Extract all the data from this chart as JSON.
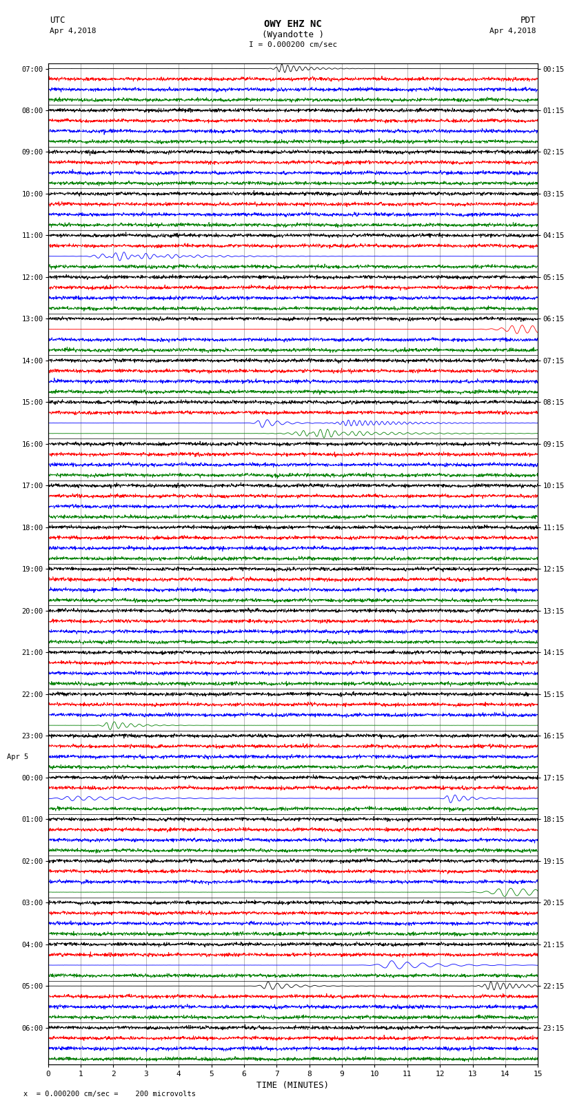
{
  "title_line1": "OWY EHZ NC",
  "title_line2": "(Wyandotte )",
  "scale_text": "I = 0.000200 cm/sec",
  "utc_label": "UTC",
  "utc_date": "Apr 4,2018",
  "pdt_label": "PDT",
  "pdt_date": "Apr 4,2018",
  "footer_text": "x  = 0.000200 cm/sec =    200 microvolts",
  "xlabel": "TIME (MINUTES)",
  "xmin": 0,
  "xmax": 15,
  "xticks": [
    0,
    1,
    2,
    3,
    4,
    5,
    6,
    7,
    8,
    9,
    10,
    11,
    12,
    13,
    14,
    15
  ],
  "left_times_utc": [
    "07:00",
    "",
    "",
    "",
    "08:00",
    "",
    "",
    "",
    "09:00",
    "",
    "",
    "",
    "10:00",
    "",
    "",
    "",
    "11:00",
    "",
    "",
    "",
    "12:00",
    "",
    "",
    "",
    "13:00",
    "",
    "",
    "",
    "14:00",
    "",
    "",
    "",
    "15:00",
    "",
    "",
    "",
    "16:00",
    "",
    "",
    "",
    "17:00",
    "",
    "",
    "",
    "18:00",
    "",
    "",
    "",
    "19:00",
    "",
    "",
    "",
    "20:00",
    "",
    "",
    "",
    "21:00",
    "",
    "",
    "",
    "22:00",
    "",
    "",
    "",
    "23:00",
    "",
    "",
    "",
    "00:00",
    "",
    "",
    "",
    "01:00",
    "",
    "",
    "",
    "02:00",
    "",
    "",
    "",
    "03:00",
    "",
    "",
    "",
    "04:00",
    "",
    "",
    "",
    "05:00",
    "",
    "",
    "",
    "06:00",
    "",
    "",
    ""
  ],
  "right_times_pdt": [
    "00:15",
    "",
    "",
    "",
    "01:15",
    "",
    "",
    "",
    "02:15",
    "",
    "",
    "",
    "03:15",
    "",
    "",
    "",
    "04:15",
    "",
    "",
    "",
    "05:15",
    "",
    "",
    "",
    "06:15",
    "",
    "",
    "",
    "07:15",
    "",
    "",
    "",
    "08:15",
    "",
    "",
    "",
    "09:15",
    "",
    "",
    "",
    "10:15",
    "",
    "",
    "",
    "11:15",
    "",
    "",
    "",
    "12:15",
    "",
    "",
    "",
    "13:15",
    "",
    "",
    "",
    "14:15",
    "",
    "",
    "",
    "15:15",
    "",
    "",
    "",
    "16:15",
    "",
    "",
    "",
    "17:15",
    "",
    "",
    "",
    "18:15",
    "",
    "",
    "",
    "19:15",
    "",
    "",
    "",
    "20:15",
    "",
    "",
    "",
    "21:15",
    "",
    "",
    "",
    "22:15",
    "",
    "",
    "",
    "23:15",
    "",
    "",
    ""
  ],
  "trace_colors": [
    "black",
    "red",
    "blue",
    "green"
  ],
  "bg_color": "white",
  "vgrid_color": "#999999",
  "hgrid_color": "#000000",
  "figsize": [
    8.5,
    16.13
  ],
  "dpi": 100,
  "apr5_row": 68,
  "noise_base": 0.012,
  "event_prob": 0.12,
  "n_points": 1800
}
